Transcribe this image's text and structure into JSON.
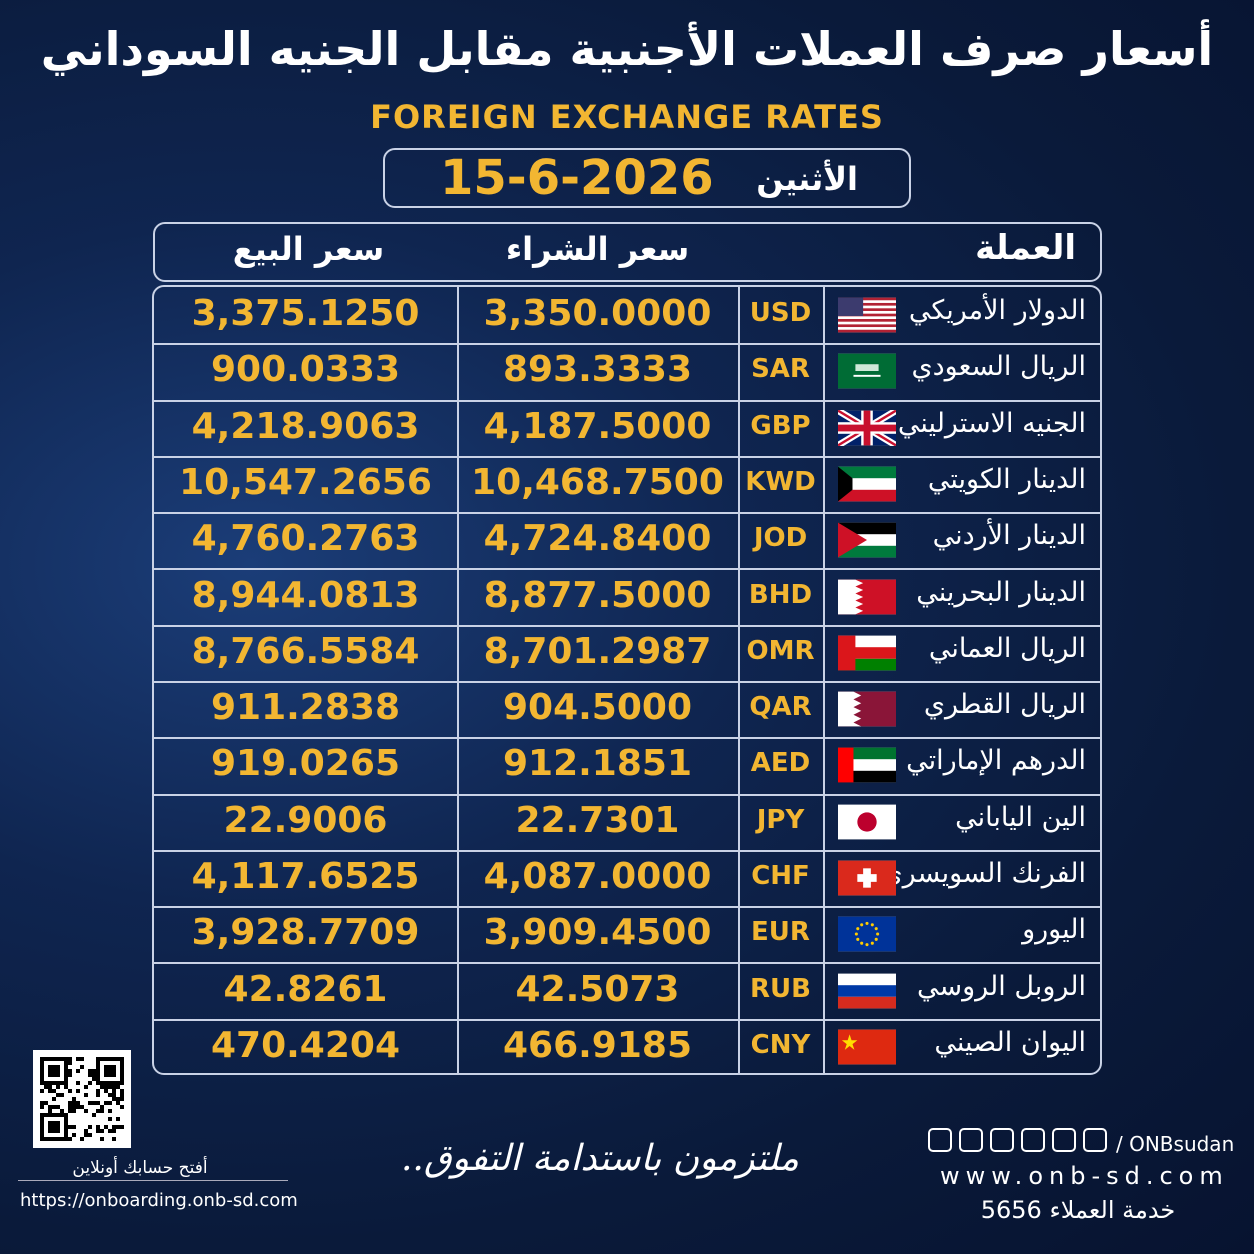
{
  "header": {
    "title": "أسعار صرف العملات الأجنبية مقابل الجنيه السوداني",
    "subtitle": "FOREIGN EXCHANGE RATES",
    "day": "الأثنين",
    "date": "15-6-2026"
  },
  "table": {
    "columns": [
      "العملة",
      "سعر الشراء",
      "سعر البيع"
    ],
    "rows": [
      [
        "الدولار الأمريكي",
        "USD",
        "3,350.0000",
        "3,375.1250"
      ],
      [
        "الريال السعودي",
        "SAR",
        "893.3333",
        "900.0333"
      ],
      [
        "الجنيه الاسترليني",
        "GBP",
        "4,187.5000",
        "4,218.9063"
      ],
      [
        "الدينار الكويتي",
        "KWD",
        "10,468.7500",
        "10,547.2656"
      ],
      [
        "الدينار الأردني",
        "JOD",
        "4,724.8400",
        "4,760.2763"
      ],
      [
        "الدينار البحريني",
        "BHD",
        "8,877.5000",
        "8,944.0813"
      ],
      [
        "الريال العماني",
        "OMR",
        "8,701.2987",
        "8,766.5584"
      ],
      [
        "الريال القطري",
        "QAR",
        "904.5000",
        "911.2838"
      ],
      [
        "الدرهم الإماراتي",
        "AED",
        "912.1851",
        "919.0265"
      ],
      [
        "الين الياباني",
        "JPY",
        "22.7301",
        "22.9006"
      ],
      [
        "الفرنك السويسري",
        "CHF",
        "4,087.0000",
        "4,117.6525"
      ],
      [
        "اليورو",
        "EUR",
        "3,909.4500",
        "3,928.7709"
      ],
      [
        "الروبل الروسي",
        "RUB",
        "42.5073",
        "42.8261"
      ],
      [
        "اليوان الصيني",
        "CNY",
        "466.9185",
        "470.4204"
      ]
    ]
  },
  "footer": {
    "qr_caption": "أفتح حسابك أونلاين",
    "qr_url": "https://onboarding.onb-sd.com",
    "slogan": "ملتزمون باستدامة التفوق..",
    "handle": "/ ONBsudan",
    "website": "www.onb-sd.com",
    "service": "خدمة العملاء 5656"
  }
}
